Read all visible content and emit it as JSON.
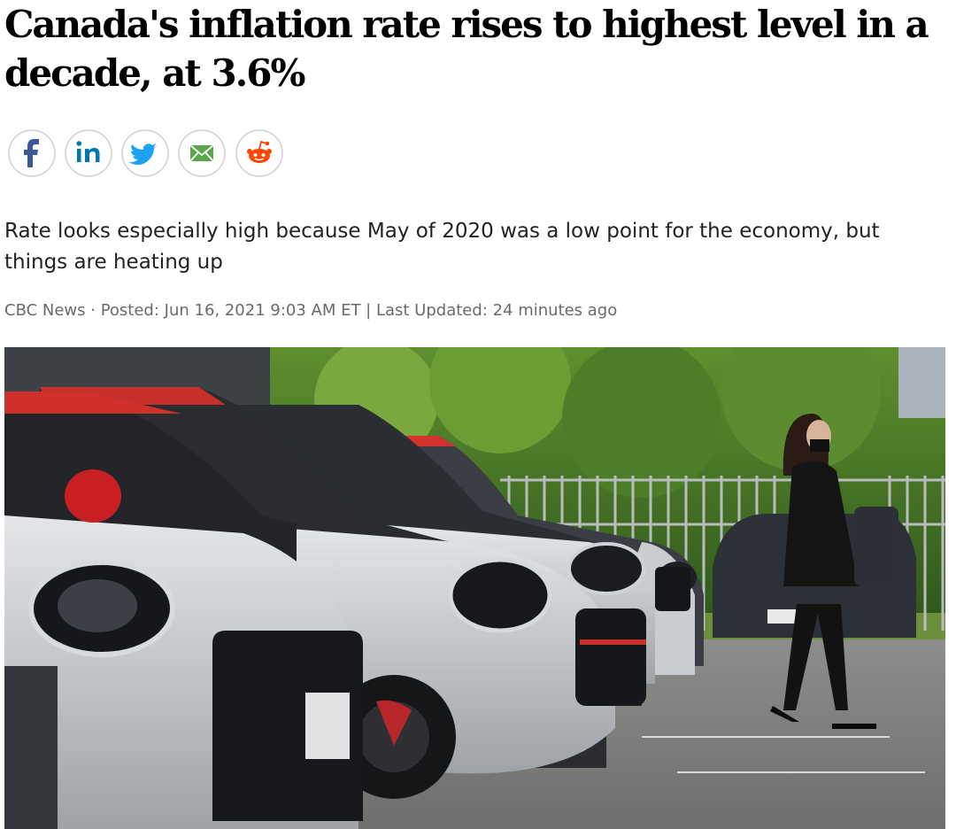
{
  "article": {
    "headline": "Canada's inflation rate rises to highest level in a decade, at 3.6%",
    "subtitle": "Rate looks especially high because May of 2020 was a low point for the economy, but things are heating up",
    "byline": "CBC News · Posted: Jun 16, 2021 9:03 AM ET | Last Updated: 24 minutes ago"
  }
}
